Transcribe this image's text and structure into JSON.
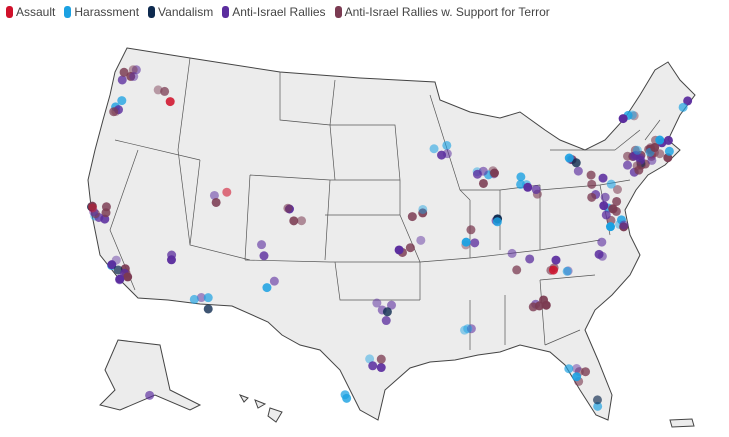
{
  "legend": [
    {
      "label": "Assault",
      "color": "#d0112b"
    },
    {
      "label": "Harassment",
      "color": "#1ba1e2"
    },
    {
      "label": "Vandalism",
      "color": "#0e2a4f"
    },
    {
      "label": "Anti-Israel Rallies",
      "color": "#5b2d9e"
    },
    {
      "label": "Anti-Israel Rallies w. Support for Terror",
      "color": "#7b3b52"
    }
  ]
}
